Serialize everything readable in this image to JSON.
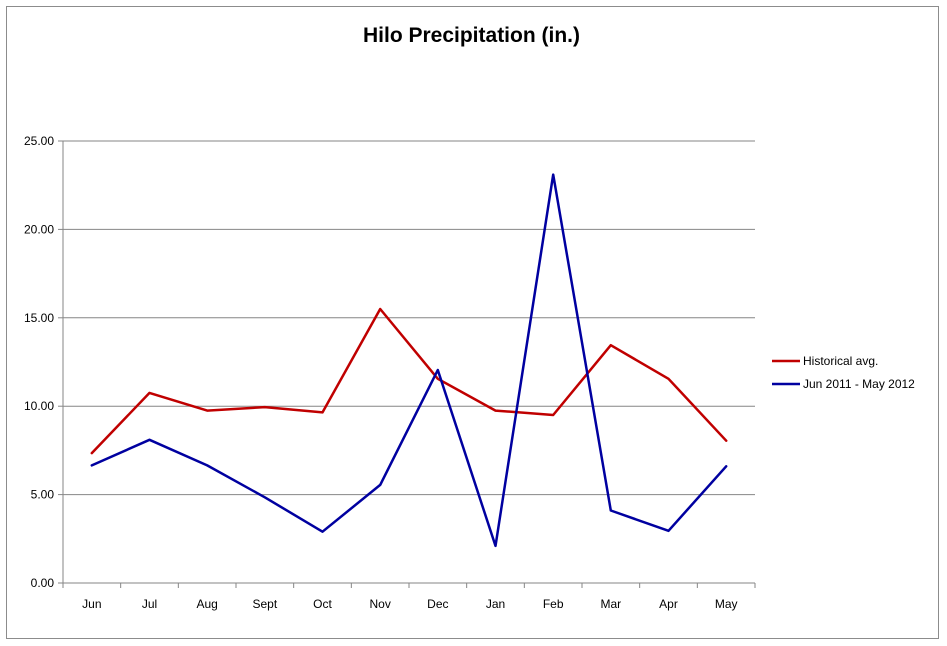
{
  "chart_data": {
    "type": "line",
    "title": "Hilo Precipitation (in.)",
    "xlabel": "",
    "ylabel": "",
    "categories": [
      "Jun",
      "Jul",
      "Aug",
      "Sept",
      "Oct",
      "Nov",
      "Dec",
      "Jan",
      "Feb",
      "Mar",
      "Apr",
      "May"
    ],
    "yticks": [
      "0.00",
      "5.00",
      "10.00",
      "15.00",
      "20.00",
      "25.00"
    ],
    "ylim": [
      0,
      25
    ],
    "grid": true,
    "legend_position": "right",
    "series": [
      {
        "name": "Historical avg.",
        "color": "#c00000",
        "values": [
          7.35,
          10.75,
          9.75,
          9.95,
          9.65,
          15.5,
          11.55,
          9.75,
          9.5,
          13.45,
          11.55,
          8.05
        ]
      },
      {
        "name": "Jun 2011 - May 2012",
        "color": "#0000a0",
        "values": [
          6.65,
          8.1,
          6.65,
          4.85,
          2.9,
          5.55,
          12.05,
          2.1,
          23.1,
          4.1,
          2.95,
          6.6
        ]
      }
    ]
  }
}
